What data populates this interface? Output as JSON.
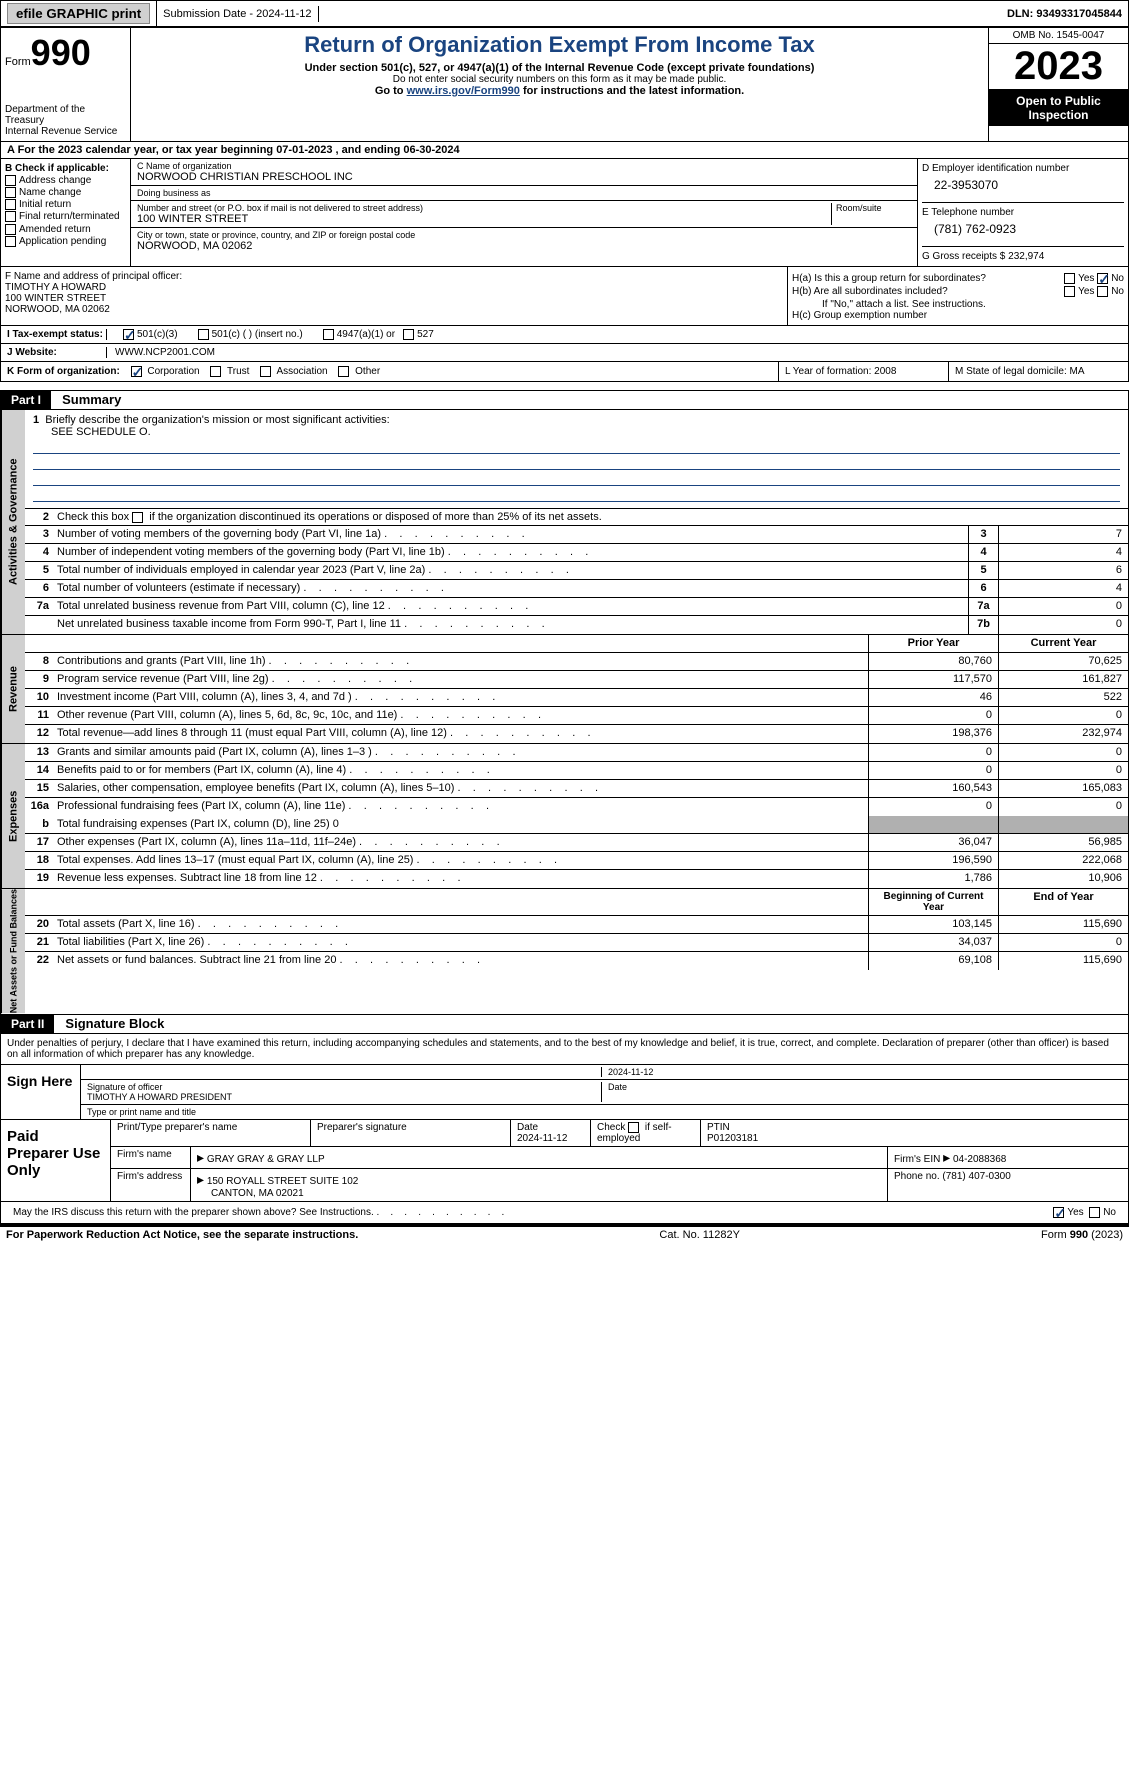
{
  "topbar": {
    "efile": "efile GRAPHIC print",
    "submission": "Submission Date - 2024-11-12",
    "dln": "DLN: 93493317045844"
  },
  "header": {
    "form_label": "Form",
    "form_no": "990",
    "dept": "Department of the Treasury",
    "irs": "Internal Revenue Service",
    "title": "Return of Organization Exempt From Income Tax",
    "sub1": "Under section 501(c), 527, or 4947(a)(1) of the Internal Revenue Code (except private foundations)",
    "sub2": "Do not enter social security numbers on this form as it may be made public.",
    "sub3_pre": "Go to ",
    "sub3_link": "www.irs.gov/Form990",
    "sub3_post": " for instructions and the latest information.",
    "omb": "OMB No. 1545-0047",
    "year": "2023",
    "open": "Open to Public Inspection"
  },
  "lineA": "A For the 2023 calendar year, or tax year beginning 07-01-2023   , and ending 06-30-2024",
  "boxB": {
    "title": "B Check if applicable:",
    "opts": [
      "Address change",
      "Name change",
      "Initial return",
      "Final return/terminated",
      "Amended return",
      "Application pending"
    ]
  },
  "boxC": {
    "name_lbl": "C Name of organization",
    "name": "NORWOOD CHRISTIAN PRESCHOOL INC",
    "dba_lbl": "Doing business as",
    "dba": "",
    "addr_lbl": "Number and street (or P.O. box if mail is not delivered to street address)",
    "addr": "100 WINTER STREET",
    "room_lbl": "Room/suite",
    "city_lbl": "City or town, state or province, country, and ZIP or foreign postal code",
    "city": "NORWOOD, MA  02062"
  },
  "boxD": {
    "lbl": "D Employer identification number",
    "val": "22-3953070"
  },
  "boxE": {
    "lbl": "E Telephone number",
    "val": "(781) 762-0923"
  },
  "boxG": {
    "lbl": "G Gross receipts $",
    "val": "232,974"
  },
  "boxF": {
    "lbl": "F  Name and address of principal officer:",
    "name": "TIMOTHY A HOWARD",
    "addr1": "100 WINTER STREET",
    "addr2": "NORWOOD, MA  02062"
  },
  "boxH": {
    "a": "H(a)  Is this a group return for subordinates?",
    "b": "H(b)  Are all subordinates included?",
    "b_note": "If \"No,\" attach a list. See instructions.",
    "c": "H(c)  Group exemption number",
    "yes": "Yes",
    "no": "No"
  },
  "rowI": {
    "lbl": "I   Tax-exempt status:",
    "o1": "501(c)(3)",
    "o2": "501(c) (  ) (insert no.)",
    "o3": "4947(a)(1) or",
    "o4": "527"
  },
  "rowJ": {
    "lbl": "J   Website:",
    "val": "WWW.NCP2001.COM"
  },
  "rowK": {
    "lbl": "K Form of organization:",
    "o1": "Corporation",
    "o2": "Trust",
    "o3": "Association",
    "o4": "Other"
  },
  "rowL": "L Year of formation: 2008",
  "rowM": "M State of legal domicile: MA",
  "part1": {
    "hdr": "Part I",
    "title": "Summary"
  },
  "summary": {
    "s1": "Briefly describe the organization's mission or most significant activities:",
    "s1v": "SEE SCHEDULE O.",
    "s2": "Check this box      if the organization discontinued its operations or disposed of more than 25% of its net assets.",
    "rows_gov": [
      {
        "n": "3",
        "d": "Number of voting members of the governing body (Part VI, line 1a)",
        "b": "3",
        "v": "7"
      },
      {
        "n": "4",
        "d": "Number of independent voting members of the governing body (Part VI, line 1b)",
        "b": "4",
        "v": "4"
      },
      {
        "n": "5",
        "d": "Total number of individuals employed in calendar year 2023 (Part V, line 2a)",
        "b": "5",
        "v": "6"
      },
      {
        "n": "6",
        "d": "Total number of volunteers (estimate if necessary)",
        "b": "6",
        "v": "4"
      },
      {
        "n": "7a",
        "d": "Total unrelated business revenue from Part VIII, column (C), line 12",
        "b": "7a",
        "v": "0"
      },
      {
        "n": "",
        "d": "Net unrelated business taxable income from Form 990-T, Part I, line 11",
        "b": "7b",
        "v": "0"
      }
    ],
    "hdr_prior": "Prior Year",
    "hdr_curr": "Current Year",
    "rows_rev": [
      {
        "n": "8",
        "d": "Contributions and grants (Part VIII, line 1h)",
        "p": "80,760",
        "c": "70,625"
      },
      {
        "n": "9",
        "d": "Program service revenue (Part VIII, line 2g)",
        "p": "117,570",
        "c": "161,827"
      },
      {
        "n": "10",
        "d": "Investment income (Part VIII, column (A), lines 3, 4, and 7d )",
        "p": "46",
        "c": "522"
      },
      {
        "n": "11",
        "d": "Other revenue (Part VIII, column (A), lines 5, 6d, 8c, 9c, 10c, and 11e)",
        "p": "0",
        "c": "0"
      },
      {
        "n": "12",
        "d": "Total revenue—add lines 8 through 11 (must equal Part VIII, column (A), line 12)",
        "p": "198,376",
        "c": "232,974"
      }
    ],
    "rows_exp": [
      {
        "n": "13",
        "d": "Grants and similar amounts paid (Part IX, column (A), lines 1–3 )",
        "p": "0",
        "c": "0"
      },
      {
        "n": "14",
        "d": "Benefits paid to or for members (Part IX, column (A), line 4)",
        "p": "0",
        "c": "0"
      },
      {
        "n": "15",
        "d": "Salaries, other compensation, employee benefits (Part IX, column (A), lines 5–10)",
        "p": "160,543",
        "c": "165,083"
      },
      {
        "n": "16a",
        "d": "Professional fundraising fees (Part IX, column (A), line 11e)",
        "p": "0",
        "c": "0"
      }
    ],
    "row16b": "Total fundraising expenses (Part IX, column (D), line 25) 0",
    "rows_exp2": [
      {
        "n": "17",
        "d": "Other expenses (Part IX, column (A), lines 11a–11d, 11f–24e)",
        "p": "36,047",
        "c": "56,985"
      },
      {
        "n": "18",
        "d": "Total expenses. Add lines 13–17 (must equal Part IX, column (A), line 25)",
        "p": "196,590",
        "c": "222,068"
      },
      {
        "n": "19",
        "d": "Revenue less expenses. Subtract line 18 from line 12",
        "p": "1,786",
        "c": "10,906"
      }
    ],
    "hdr_beg": "Beginning of Current Year",
    "hdr_end": "End of Year",
    "rows_net": [
      {
        "n": "20",
        "d": "Total assets (Part X, line 16)",
        "p": "103,145",
        "c": "115,690"
      },
      {
        "n": "21",
        "d": "Total liabilities (Part X, line 26)",
        "p": "34,037",
        "c": "0"
      },
      {
        "n": "22",
        "d": "Net assets or fund balances. Subtract line 21 from line 20",
        "p": "69,108",
        "c": "115,690"
      }
    ]
  },
  "vtabs": {
    "gov": "Activities & Governance",
    "rev": "Revenue",
    "exp": "Expenses",
    "net": "Net Assets or Fund Balances"
  },
  "part2": {
    "hdr": "Part II",
    "title": "Signature Block"
  },
  "sig": {
    "decl": "Under penalties of perjury, I declare that I have examined this return, including accompanying schedules and statements, and to the best of my knowledge and belief, it is true, correct, and complete. Declaration of preparer (other than officer) is based on all information of which preparer has any knowledge.",
    "sign_here": "Sign Here",
    "date": "2024-11-12",
    "sig_lbl": "Signature of officer",
    "officer": "TIMOTHY A HOWARD  PRESIDENT",
    "type_lbl": "Type or print name and title",
    "date_lbl": "Date"
  },
  "prep": {
    "lbl": "Paid Preparer Use Only",
    "name_lbl": "Print/Type preparer's name",
    "sig_lbl": "Preparer's signature",
    "date_lbl": "Date",
    "date": "2024-11-12",
    "check_lbl": "Check         if self-employed",
    "ptin_lbl": "PTIN",
    "ptin": "P01203181",
    "firm_lbl": "Firm's name",
    "firm": "GRAY GRAY & GRAY LLP",
    "ein_lbl": "Firm's EIN",
    "ein": "04-2088368",
    "addr_lbl": "Firm's address",
    "addr1": "150 ROYALL STREET SUITE 102",
    "addr2": "CANTON, MA  02021",
    "phone_lbl": "Phone no.",
    "phone": "(781) 407-0300"
  },
  "discuss": {
    "text": "May the IRS discuss this return with the preparer shown above? See Instructions.",
    "yes": "Yes",
    "no": "No"
  },
  "footer": {
    "left": "For Paperwork Reduction Act Notice, see the separate instructions.",
    "mid": "Cat. No. 11282Y",
    "right_pre": "Form ",
    "right_b": "990",
    "right_post": " (2023)"
  }
}
